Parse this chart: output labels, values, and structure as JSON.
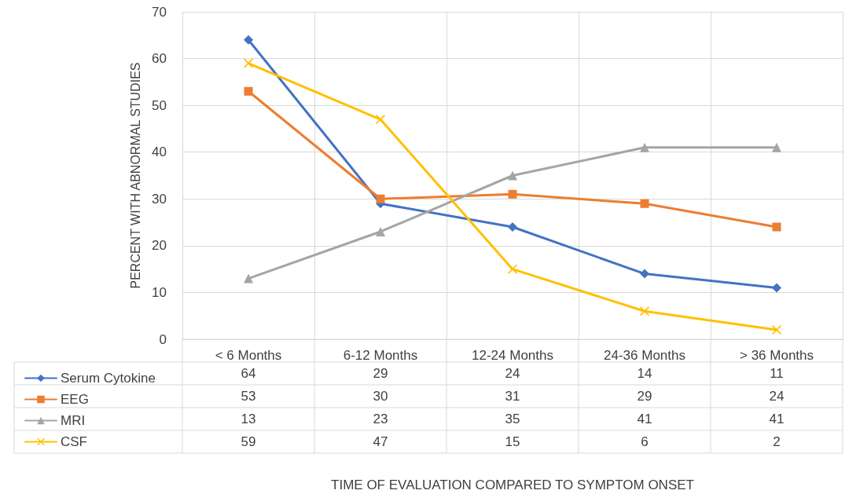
{
  "chart_data": {
    "type": "line",
    "annotations": [
      "TIME OF EVALUATION COMPARED TO SYMPTOM ONSET"
    ],
    "ylabel": "PERCENT WITH ABNORMAL STUDIES",
    "categories": [
      "< 6 Months",
      "6-12 Months",
      "12-24 Months",
      "24-36 Months",
      "> 36 Months"
    ],
    "series": [
      {
        "name": "Serum Cytokine",
        "color": "#4472c4",
        "marker": "diamond",
        "values": [
          64,
          29,
          24,
          14,
          11
        ]
      },
      {
        "name": "EEG",
        "color": "#ed7d31",
        "marker": "square",
        "values": [
          53,
          30,
          31,
          29,
          24
        ]
      },
      {
        "name": "MRI",
        "color": "#a5a5a5",
        "marker": "triangle",
        "values": [
          13,
          23,
          35,
          41,
          41
        ]
      },
      {
        "name": "CSF",
        "color": "#ffc000",
        "marker": "cross",
        "values": [
          59,
          47,
          15,
          6,
          2
        ]
      }
    ],
    "ylim": [
      0,
      70
    ],
    "yticks": [
      0,
      10,
      20,
      30,
      40,
      50,
      60,
      70
    ],
    "grid": true,
    "legend": "bottom",
    "data_labels": true
  }
}
